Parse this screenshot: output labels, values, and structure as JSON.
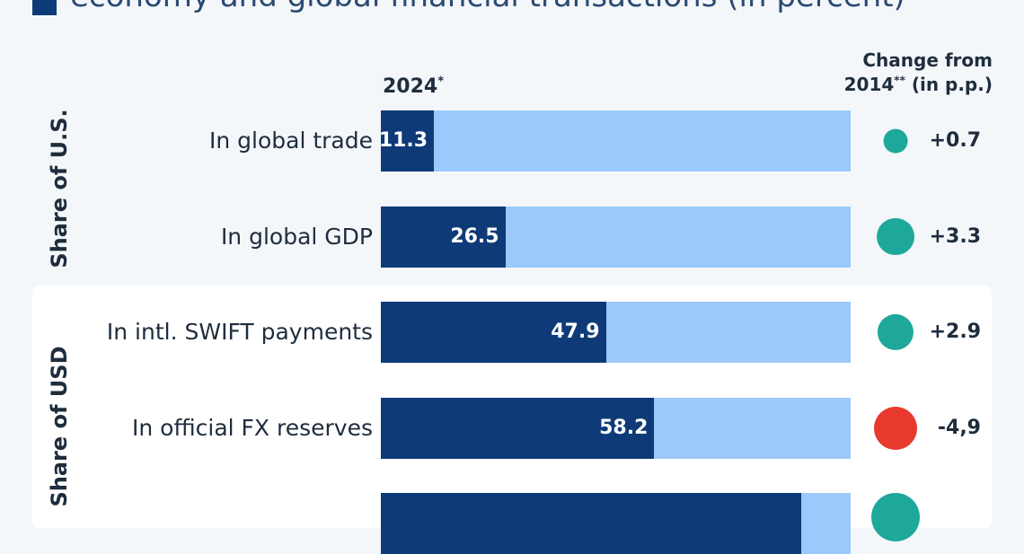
{
  "legend": {
    "color": "#0e3a78",
    "text": "economy and global financial transactions (in percent)"
  },
  "header": {
    "year": "2024",
    "year_note": "*",
    "change_line1": "Change from",
    "change_line2_pre": "2014",
    "change_line2_note": "**",
    "change_line2_post": " (in p.p.)"
  },
  "groups": [
    {
      "label": "Share of U.S."
    },
    {
      "label": "Share of USD"
    }
  ],
  "colors": {
    "bar": "#0e3a78",
    "track": "#9cc9f9",
    "positive": "#1ea89a",
    "negative": "#e8392f"
  },
  "chart_data": {
    "type": "bar",
    "orientation": "horizontal",
    "xlim": [
      0,
      100
    ],
    "categories": [
      "In global trade",
      "In global GDP",
      "In intl. SWIFT payments",
      "In official FX reserves"
    ],
    "values": [
      11.3,
      26.5,
      47.9,
      58.2
    ],
    "value_labels": [
      "11.3",
      "26.5",
      "47.9",
      "58.2"
    ],
    "change_values": [
      0.7,
      3.3,
      2.9,
      -4.9
    ],
    "change_labels": [
      "+0.7",
      "+3.3",
      "+2.9",
      "-4,9"
    ],
    "partial_fifth_bar_value": 89.5
  }
}
